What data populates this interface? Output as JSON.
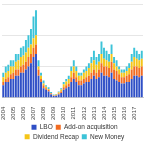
{
  "chart_data": {
    "type": "bar",
    "categories": [
      "2004",
      null,
      null,
      null,
      "2005",
      null,
      null,
      null,
      "2006",
      null,
      null,
      null,
      "2007",
      null,
      null,
      null,
      "2008",
      null,
      null,
      null,
      "2009",
      null,
      null,
      null,
      "2010",
      null,
      null,
      null,
      "2011",
      null,
      null,
      null,
      "2012",
      null,
      null,
      null,
      "2013",
      null,
      null,
      null,
      "2014",
      null,
      null,
      null,
      "2015",
      null,
      null,
      null,
      "2016",
      null,
      null,
      null,
      "2017",
      null,
      null,
      null
    ],
    "series": [
      {
        "name": "LBO",
        "color": "#2f4fc6",
        "values": [
          4,
          5,
          5,
          6,
          6,
          7,
          7,
          8,
          8,
          9,
          10,
          11,
          13,
          14,
          7,
          5,
          3,
          2.5,
          2,
          1,
          0.5,
          0.6,
          1,
          1.5,
          2.5,
          3,
          3.5,
          5,
          6,
          5,
          4,
          4,
          4.5,
          5,
          5,
          6,
          7,
          6,
          6.5,
          8,
          7,
          7,
          6.5,
          8,
          6,
          5.5,
          5,
          4.5,
          4.5,
          5,
          5,
          6,
          7,
          7,
          6.5,
          7
        ]
      },
      {
        "name": "Add-on acquisition",
        "color": "#f26b21",
        "values": [
          1,
          1,
          1.5,
          1.5,
          2,
          2,
          2,
          2,
          2.5,
          2.5,
          3,
          3,
          3,
          3,
          2,
          1,
          1,
          0.5,
          0.5,
          0.3,
          0.2,
          0.2,
          0.3,
          0.5,
          0.8,
          1,
          1,
          1.5,
          2,
          1.5,
          1.5,
          1.5,
          1.5,
          1.5,
          2,
          2,
          2,
          2,
          2.5,
          3,
          3,
          3,
          3,
          3.5,
          3,
          3,
          2.5,
          2,
          2,
          2,
          2.5,
          3,
          3,
          3,
          3,
          3
        ]
      },
      {
        "name": "Dividend Recap",
        "color": "#f5c518",
        "values": [
          1.5,
          2,
          2,
          2.5,
          2,
          2.5,
          3,
          3,
          3,
          3,
          3,
          3,
          3,
          3,
          1,
          1,
          0.5,
          0.5,
          0.3,
          0.2,
          0.1,
          0.2,
          0.4,
          0.6,
          1,
          1.2,
          1.5,
          2,
          2,
          2,
          1.5,
          1.5,
          2,
          2,
          2.5,
          3,
          3,
          2.5,
          2.5,
          3,
          2.5,
          2,
          2,
          2.5,
          2,
          1.5,
          1.5,
          1.5,
          1.5,
          1.5,
          2,
          2.5,
          3,
          2.5,
          2.5,
          2.5
        ]
      },
      {
        "name": "New Money",
        "color": "#3cc3d8",
        "values": [
          1.5,
          2,
          2,
          2,
          2,
          2.5,
          2,
          3,
          3,
          4,
          4,
          5,
          7,
          8,
          2,
          1,
          1,
          0.5,
          0.5,
          0.3,
          0.2,
          0.2,
          0.3,
          0.4,
          0.7,
          0.8,
          1,
          1.5,
          2,
          1.5,
          1,
          1,
          1,
          1.5,
          1.5,
          2,
          3,
          2.5,
          2.5,
          4,
          3.5,
          3,
          2.5,
          3,
          2,
          2,
          1,
          1,
          1,
          1.5,
          1.5,
          2.5,
          3,
          2.5,
          2,
          2.5
        ]
      }
    ],
    "stacked": true,
    "ylim": [
      0,
      30
    ],
    "yticks": [
      0,
      10,
      20,
      30
    ],
    "grid": true,
    "legend": "bottom",
    "tick_labels": "x"
  }
}
